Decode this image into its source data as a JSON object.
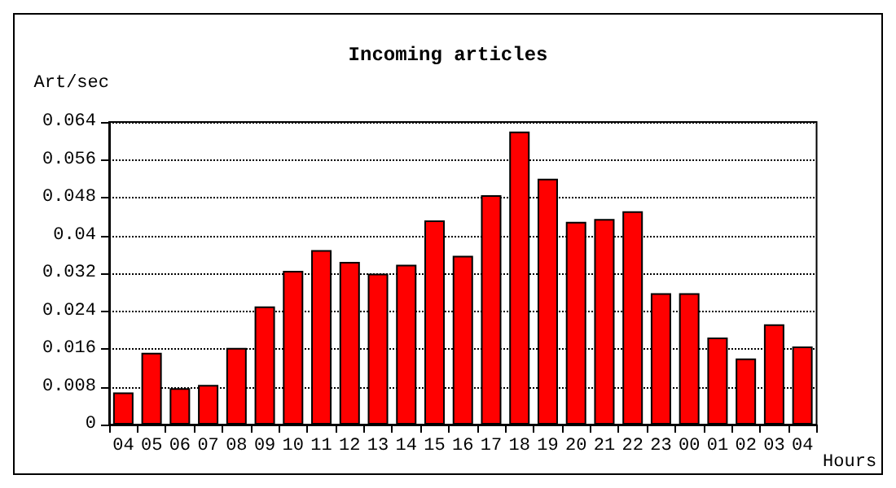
{
  "chart_data": {
    "type": "bar",
    "title": "Incoming articles",
    "xlabel": "Hours",
    "ylabel": "Art/sec",
    "categories": [
      "04",
      "05",
      "06",
      "07",
      "08",
      "09",
      "10",
      "11",
      "12",
      "13",
      "14",
      "15",
      "16",
      "17",
      "18",
      "19",
      "20",
      "21",
      "22",
      "23",
      "00",
      "01",
      "02",
      "03",
      "04"
    ],
    "values": [
      0.0068,
      0.0152,
      0.0077,
      0.0084,
      0.0162,
      0.025,
      0.0325,
      0.0369,
      0.0344,
      0.0319,
      0.0338,
      0.0432,
      0.0357,
      0.0485,
      0.062,
      0.052,
      0.0429,
      0.0435,
      0.0451,
      0.0278,
      0.0278,
      0.0184,
      0.014,
      0.0212,
      0.0165
    ],
    "color": "#ff0000",
    "ylim": [
      0,
      0.064
    ],
    "yticks": [
      0,
      0.008,
      0.016,
      0.024,
      0.032,
      0.04,
      0.048,
      0.056,
      0.064
    ],
    "grid": "y"
  }
}
